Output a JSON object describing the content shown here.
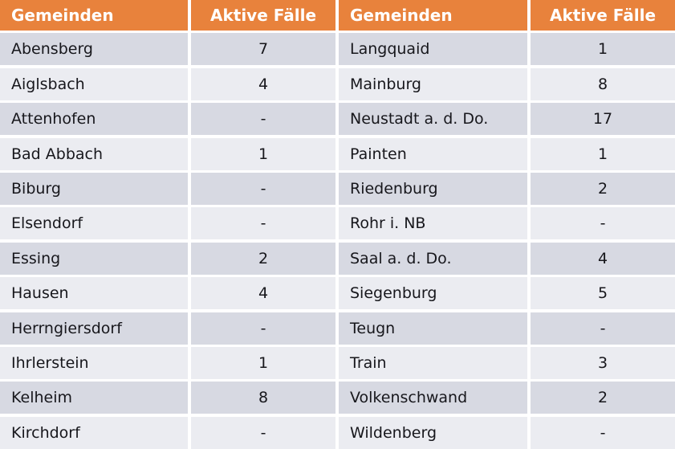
{
  "chart_data": {
    "type": "table",
    "columns": [
      "Gemeinden",
      "Aktive Fälle",
      "Gemeinden",
      "Aktive Fälle"
    ],
    "rows": [
      [
        "Abensberg",
        "7",
        "Langquaid",
        "1"
      ],
      [
        "Aiglsbach",
        "4",
        "Mainburg",
        "8"
      ],
      [
        "Attenhofen",
        "-",
        "Neustadt a. d. Do.",
        "17"
      ],
      [
        "Bad Abbach",
        "1",
        "Painten",
        "1"
      ],
      [
        "Biburg",
        "-",
        "Riedenburg",
        "2"
      ],
      [
        "Elsendorf",
        "-",
        "Rohr i. NB",
        "-"
      ],
      [
        "Essing",
        "2",
        "Saal a. d. Do.",
        "4"
      ],
      [
        "Hausen",
        "4",
        "Siegenburg",
        "5"
      ],
      [
        "Herrngiersdorf",
        "-",
        "Teugn",
        "-"
      ],
      [
        "Ihrlerstein",
        "1",
        "Train",
        "3"
      ],
      [
        "Kelheim",
        "8",
        "Volkenschwand",
        "2"
      ],
      [
        "Kirchdorf",
        "-",
        "Wildenberg",
        "-"
      ]
    ],
    "layout": {
      "legend": "none",
      "grid": "white-gaps-between-cells",
      "striping": "alternating rows dark/light"
    }
  },
  "colors": {
    "header_bg": "#e8823c",
    "header_text": "#ffffff",
    "row_dark": "#d7d9e2",
    "row_light": "#ebecf1",
    "body_text": "#17171c",
    "gap": "#ffffff"
  }
}
